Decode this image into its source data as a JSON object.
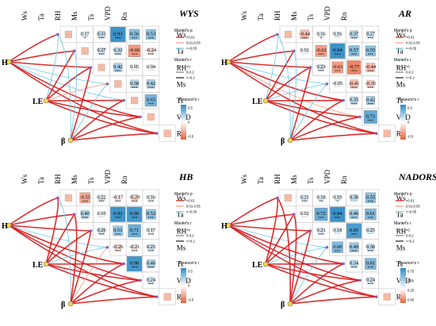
{
  "colors": {
    "pos": "#2e8bc4",
    "neg": "#e8603a",
    "link_sig": "#d7191c",
    "link_mid": "#f39b7f",
    "link_ns": "#67c8e3"
  },
  "chart_data": [
    {
      "type": "heatmap",
      "title": "WYS",
      "variables": [
        "Ws",
        "Ta",
        "RH",
        "Ms",
        "Ts",
        "VPD",
        "Rn"
      ],
      "responses": [
        "H",
        "LE",
        "β"
      ],
      "cells": [
        {
          "r": 1,
          "c": 0,
          "v": 0.17,
          "star": "*"
        },
        {
          "r": 2,
          "c": 0,
          "v": 0.31,
          "star": "***"
        },
        {
          "r": 2,
          "c": 1,
          "v": 0.27,
          "star": "***"
        },
        {
          "r": 3,
          "c": 0,
          "v": 0.93,
          "star": "***"
        },
        {
          "r": 3,
          "c": 1,
          "v": 0.32,
          "star": "***"
        },
        {
          "r": 3,
          "c": 2,
          "v": 0.42,
          "star": "***"
        },
        {
          "r": 4,
          "c": 0,
          "v": 0.56,
          "star": "***"
        },
        {
          "r": 4,
          "c": 1,
          "v": -0.66,
          "star": "***"
        },
        {
          "r": 4,
          "c": 2,
          "v": 0.05,
          "star": ""
        },
        {
          "r": 4,
          "c": 3,
          "v": 0.38,
          "star": "***"
        },
        {
          "r": 5,
          "c": 0,
          "v": 0.53,
          "star": "***"
        },
        {
          "r": 5,
          "c": 1,
          "v": -0.24,
          "star": "***"
        },
        {
          "r": 5,
          "c": 2,
          "v": 0.04,
          "star": ""
        },
        {
          "r": 5,
          "c": 3,
          "v": 0.42,
          "star": "***"
        },
        {
          "r": 5,
          "c": 4,
          "v": 0.65,
          "star": "***"
        }
      ],
      "mantel": [
        {
          "from": "H",
          "to": "Ws",
          "p": "sig"
        },
        {
          "from": "H",
          "to": "Ta",
          "p": "sig"
        },
        {
          "from": "H",
          "to": "RH",
          "p": "sig"
        },
        {
          "from": "H",
          "to": "Ms",
          "p": "ns"
        },
        {
          "from": "H",
          "to": "Ts",
          "p": "ns"
        },
        {
          "from": "H",
          "to": "VPD",
          "p": "sig"
        },
        {
          "from": "H",
          "to": "Rn",
          "p": "sig"
        },
        {
          "from": "LE",
          "to": "Ws",
          "p": "ns"
        },
        {
          "from": "LE",
          "to": "Ta",
          "p": "sig"
        },
        {
          "from": "LE",
          "to": "RH",
          "p": "sig"
        },
        {
          "from": "LE",
          "to": "Ms",
          "p": "mid"
        },
        {
          "from": "LE",
          "to": "Ts",
          "p": "sig"
        },
        {
          "from": "LE",
          "to": "VPD",
          "p": "sig"
        },
        {
          "from": "LE",
          "to": "Rn",
          "p": "sig"
        },
        {
          "from": "β",
          "to": "Ws",
          "p": "ns"
        },
        {
          "from": "β",
          "to": "Ta",
          "p": "ns"
        },
        {
          "from": "β",
          "to": "RH",
          "p": "sig"
        },
        {
          "from": "β",
          "to": "Ms",
          "p": "ns"
        },
        {
          "from": "β",
          "to": "Ts",
          "p": "sig"
        },
        {
          "from": "β",
          "to": "VPD",
          "p": "sig"
        },
        {
          "from": "β",
          "to": "Rn",
          "p": "sig"
        }
      ],
      "legend_ticks": [
        "0.5",
        "0",
        "-0.5"
      ]
    },
    {
      "type": "heatmap",
      "title": "AR",
      "variables": [
        "Ws",
        "Ta",
        "RH",
        "Ms",
        "Ts",
        "VPD",
        "Rn"
      ],
      "responses": [
        "H",
        "LE",
        "β"
      ],
      "cells": [
        {
          "r": 1,
          "c": 0,
          "v": -0.44,
          "star": "***"
        },
        {
          "r": 1,
          "c": 1,
          "v": 0.02,
          "star": ""
        },
        {
          "r": 2,
          "c": 0,
          "v": 0.16,
          "star": "*"
        },
        {
          "r": 2,
          "c": 1,
          "v": -0.62,
          "star": "***"
        },
        {
          "r": 2,
          "c": 2,
          "v": 0.23,
          "star": "***"
        },
        {
          "r": 3,
          "c": 0,
          "v": 0.16,
          "star": ""
        },
        {
          "r": 3,
          "c": 1,
          "v": 0.94,
          "star": "***"
        },
        {
          "r": 3,
          "c": 2,
          "v": -0.61,
          "star": "***"
        },
        {
          "r": 3,
          "c": 3,
          "v": -0.05,
          "star": ""
        },
        {
          "r": 4,
          "c": 0,
          "v": 0.37,
          "star": "***"
        },
        {
          "r": 4,
          "c": 1,
          "v": 0.57,
          "star": "***"
        },
        {
          "r": 4,
          "c": 2,
          "v": -0.77,
          "star": "***"
        },
        {
          "r": 4,
          "c": 3,
          "v": -0.41,
          "star": "***"
        },
        {
          "r": 4,
          "c": 4,
          "v": 0.35,
          "star": "***"
        },
        {
          "r": 5,
          "c": 0,
          "v": 0.27,
          "star": "***"
        },
        {
          "r": 5,
          "c": 1,
          "v": 0.55,
          "star": "***"
        },
        {
          "r": 5,
          "c": 2,
          "v": -0.44,
          "star": "***"
        },
        {
          "r": 5,
          "c": 3,
          "v": -0.35,
          "star": "***"
        },
        {
          "r": 5,
          "c": 4,
          "v": 0.42,
          "star": "***"
        },
        {
          "r": 5,
          "c": 5,
          "v": 0.73,
          "star": "***"
        }
      ],
      "mantel": [
        {
          "from": "H",
          "to": "Ws",
          "p": "sig"
        },
        {
          "from": "H",
          "to": "Ta",
          "p": "sig"
        },
        {
          "from": "H",
          "to": "RH",
          "p": "sig"
        },
        {
          "from": "H",
          "to": "Ms",
          "p": "ns"
        },
        {
          "from": "H",
          "to": "Ts",
          "p": "sig"
        },
        {
          "from": "H",
          "to": "VPD",
          "p": "mid"
        },
        {
          "from": "H",
          "to": "Rn",
          "p": "sig"
        },
        {
          "from": "LE",
          "to": "Ws",
          "p": "ns"
        },
        {
          "from": "LE",
          "to": "Ta",
          "p": "sig"
        },
        {
          "from": "LE",
          "to": "RH",
          "p": "sig"
        },
        {
          "from": "LE",
          "to": "Ms",
          "p": "ns"
        },
        {
          "from": "LE",
          "to": "Ts",
          "p": "sig"
        },
        {
          "from": "LE",
          "to": "VPD",
          "p": "sig"
        },
        {
          "from": "LE",
          "to": "Rn",
          "p": "sig"
        },
        {
          "from": "β",
          "to": "Ws",
          "p": "ns"
        },
        {
          "from": "β",
          "to": "Ta",
          "p": "ns"
        },
        {
          "from": "β",
          "to": "RH",
          "p": "sig"
        },
        {
          "from": "β",
          "to": "Ms",
          "p": "ns"
        },
        {
          "from": "β",
          "to": "Ts",
          "p": "sig"
        },
        {
          "from": "β",
          "to": "VPD",
          "p": "sig"
        },
        {
          "from": "β",
          "to": "Rn",
          "p": "sig"
        }
      ],
      "legend_ticks": [
        "0.5",
        "0",
        "-0.5"
      ]
    },
    {
      "type": "heatmap",
      "title": "HB",
      "variables": [
        "Ws",
        "Ta",
        "RH",
        "Ms",
        "Ts",
        "VPD",
        "Rn"
      ],
      "responses": [
        "H",
        "LE",
        "β"
      ],
      "cells": [
        {
          "r": 1,
          "c": 0,
          "v": -0.55,
          "star": "***"
        },
        {
          "r": 1,
          "c": 1,
          "v": 0.4,
          "star": "***"
        },
        {
          "r": 2,
          "c": 0,
          "v": 0.22,
          "star": "***"
        },
        {
          "r": 2,
          "c": 1,
          "v": 0.05,
          "star": ""
        },
        {
          "r": 2,
          "c": 2,
          "v": 0.26,
          "star": "***"
        },
        {
          "r": 3,
          "c": 0,
          "v": -0.17,
          "star": "***"
        },
        {
          "r": 3,
          "c": 1,
          "v": 0.92,
          "star": "***"
        },
        {
          "r": 3,
          "c": 2,
          "v": 0.51,
          "star": "***"
        },
        {
          "r": 3,
          "c": 3,
          "v": -0.26,
          "star": "***"
        },
        {
          "r": 4,
          "c": 0,
          "v": -0.29,
          "star": "***"
        },
        {
          "r": 4,
          "c": 1,
          "v": 0.9,
          "star": "***"
        },
        {
          "r": 4,
          "c": 2,
          "v": 0.71,
          "star": "***"
        },
        {
          "r": 4,
          "c": 3,
          "v": -0.21,
          "star": "***"
        },
        {
          "r": 4,
          "c": 4,
          "v": 0.9,
          "star": "***"
        },
        {
          "r": 5,
          "c": 0,
          "v": 0.16,
          "star": "***"
        },
        {
          "r": 5,
          "c": 1,
          "v": 0.52,
          "star": "***"
        },
        {
          "r": 5,
          "c": 2,
          "v": 0.17,
          "star": "***"
        },
        {
          "r": 5,
          "c": 3,
          "v": 0.25,
          "star": "***"
        },
        {
          "r": 5,
          "c": 4,
          "v": 0.4,
          "star": "***"
        },
        {
          "r": 5,
          "c": 5,
          "v": 0.24,
          "star": "***"
        }
      ],
      "mantel": [
        {
          "from": "H",
          "to": "Ws",
          "p": "sig"
        },
        {
          "from": "H",
          "to": "Ta",
          "p": "sig"
        },
        {
          "from": "H",
          "to": "RH",
          "p": "sig"
        },
        {
          "from": "H",
          "to": "Ms",
          "p": "ns"
        },
        {
          "from": "H",
          "to": "Ts",
          "p": "sig"
        },
        {
          "from": "H",
          "to": "VPD",
          "p": "sig"
        },
        {
          "from": "H",
          "to": "Rn",
          "p": "sig"
        },
        {
          "from": "LE",
          "to": "Ws",
          "p": "sig"
        },
        {
          "from": "LE",
          "to": "Ta",
          "p": "sig"
        },
        {
          "from": "LE",
          "to": "RH",
          "p": "sig"
        },
        {
          "from": "LE",
          "to": "Ms",
          "p": "ns"
        },
        {
          "from": "LE",
          "to": "Ts",
          "p": "sig"
        },
        {
          "from": "LE",
          "to": "VPD",
          "p": "sig"
        },
        {
          "from": "LE",
          "to": "Rn",
          "p": "sig"
        },
        {
          "from": "β",
          "to": "Ws",
          "p": "ns"
        },
        {
          "from": "β",
          "to": "Ta",
          "p": "sig"
        },
        {
          "from": "β",
          "to": "RH",
          "p": "sig"
        },
        {
          "from": "β",
          "to": "Ms",
          "p": "mid"
        },
        {
          "from": "β",
          "to": "Ts",
          "p": "sig"
        },
        {
          "from": "β",
          "to": "VPD",
          "p": "sig"
        },
        {
          "from": "β",
          "to": "Rn",
          "p": "sig"
        }
      ],
      "legend_ticks": [
        "0.5",
        "0",
        "-0.5"
      ]
    },
    {
      "type": "heatmap",
      "title": "NADORS",
      "variables": [
        "Ws",
        "Ta",
        "RH",
        "Ms",
        "Ts",
        "VPD",
        "Rn"
      ],
      "responses": [
        "H",
        "LE",
        "β"
      ],
      "cells": [
        {
          "r": 1,
          "c": 0,
          "v": 0.21,
          "star": "***"
        },
        {
          "r": 1,
          "c": 1,
          "v": 0.02,
          "star": ""
        },
        {
          "r": 2,
          "c": 0,
          "v": 0.18,
          "star": "**"
        },
        {
          "r": 2,
          "c": 1,
          "v": 0.72,
          "star": "***"
        },
        {
          "r": 2,
          "c": 2,
          "v": 0.21,
          "star": "***"
        },
        {
          "r": 3,
          "c": 0,
          "v": 0.19,
          "star": "*"
        },
        {
          "r": 3,
          "c": 1,
          "v": 0.94,
          "star": "***"
        },
        {
          "r": 3,
          "c": 2,
          "v": 0.18,
          "star": ""
        },
        {
          "r": 3,
          "c": 3,
          "v": 0.6,
          "star": "***"
        },
        {
          "r": 4,
          "c": 0,
          "v": 0.3,
          "star": ""
        },
        {
          "r": 4,
          "c": 1,
          "v": 0.46,
          "star": "***"
        },
        {
          "r": 4,
          "c": 2,
          "v": 0.85,
          "star": "***"
        },
        {
          "r": 4,
          "c": 3,
          "v": 0.49,
          "star": "***"
        },
        {
          "r": 4,
          "c": 4,
          "v": 0.34,
          "star": "***"
        },
        {
          "r": 5,
          "c": 0,
          "v": 0.55,
          "star": "***"
        },
        {
          "r": 5,
          "c": 1,
          "v": 0.61,
          "star": "***"
        },
        {
          "r": 5,
          "c": 2,
          "v": 0.25,
          "star": ""
        },
        {
          "r": 5,
          "c": 3,
          "v": 0.3,
          "star": "***"
        },
        {
          "r": 5,
          "c": 4,
          "v": 0.61,
          "star": "***"
        },
        {
          "r": 5,
          "c": 5,
          "v": 0.24,
          "star": "***"
        }
      ],
      "mantel": [
        {
          "from": "H",
          "to": "Ws",
          "p": "sig"
        },
        {
          "from": "H",
          "to": "Ta",
          "p": "sig"
        },
        {
          "from": "H",
          "to": "RH",
          "p": "sig"
        },
        {
          "from": "H",
          "to": "Ms",
          "p": "ns"
        },
        {
          "from": "H",
          "to": "Ts",
          "p": "sig"
        },
        {
          "from": "H",
          "to": "VPD",
          "p": "sig"
        },
        {
          "from": "H",
          "to": "Rn",
          "p": "sig"
        },
        {
          "from": "LE",
          "to": "Ws",
          "p": "sig"
        },
        {
          "from": "LE",
          "to": "Ta",
          "p": "sig"
        },
        {
          "from": "LE",
          "to": "RH",
          "p": "sig"
        },
        {
          "from": "LE",
          "to": "Ms",
          "p": "ns"
        },
        {
          "from": "LE",
          "to": "Ts",
          "p": "sig"
        },
        {
          "from": "LE",
          "to": "VPD",
          "p": "sig"
        },
        {
          "from": "LE",
          "to": "Rn",
          "p": "sig"
        },
        {
          "from": "β",
          "to": "Ws",
          "p": "sig"
        },
        {
          "from": "β",
          "to": "Ta",
          "p": "sig"
        },
        {
          "from": "β",
          "to": "RH",
          "p": "sig"
        },
        {
          "from": "β",
          "to": "Ms",
          "p": "ns"
        },
        {
          "from": "β",
          "to": "Ts",
          "p": "sig"
        },
        {
          "from": "β",
          "to": "VPD",
          "p": "sig"
        },
        {
          "from": "β",
          "to": "Rn",
          "p": "sig"
        }
      ],
      "legend_ticks": [
        "0.75",
        "0.50",
        "0.25",
        "0.00"
      ]
    }
  ],
  "legend": {
    "mantel_p_title": "Mantel's p",
    "mantel_p_items": [
      "<0.01",
      "0.01-0.05",
      ">=0.05"
    ],
    "mantel_r_title": "Mantel's r",
    "mantel_r_items": [
      "<0",
      "0-0.2",
      ">=0.2"
    ],
    "pearson_title": "Pearson's r"
  }
}
